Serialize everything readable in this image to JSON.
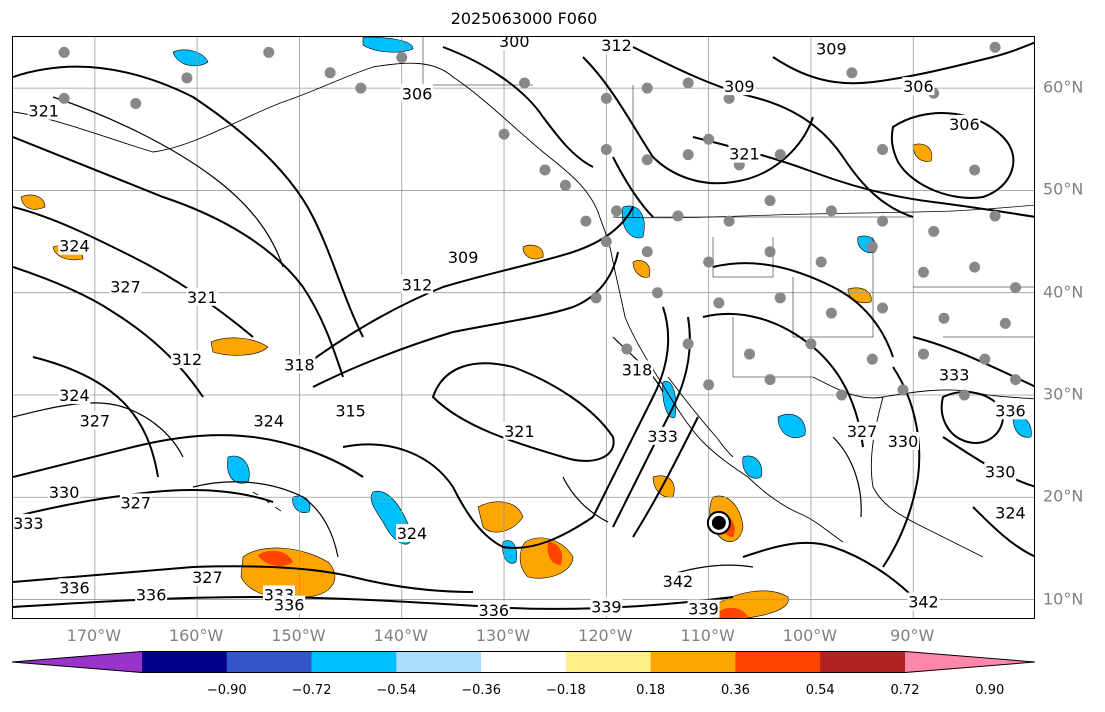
{
  "title": "2025063000 F060",
  "lat_labels": [
    {
      "label": "60°N",
      "lat": 60
    },
    {
      "label": "50°N",
      "lat": 50
    },
    {
      "label": "40°N",
      "lat": 40
    },
    {
      "label": "30°N",
      "lat": 30
    },
    {
      "label": "20°N",
      "lat": 20
    },
    {
      "label": "10°N",
      "lat": 10
    }
  ],
  "lon_labels": [
    {
      "label": "170°W",
      "lon": -170
    },
    {
      "label": "160°W",
      "lon": -160
    },
    {
      "label": "150°W",
      "lon": -150
    },
    {
      "label": "140°W",
      "lon": -140
    },
    {
      "label": "130°W",
      "lon": -130
    },
    {
      "label": "120°W",
      "lon": -120
    },
    {
      "label": "110°W",
      "lon": -110
    },
    {
      "label": "100°W",
      "lon": -100
    },
    {
      "label": "90°W",
      "lon": -90
    }
  ],
  "map_extent": {
    "lon_min": -178,
    "lon_max": -78,
    "lat_min": 8,
    "lat_max": 65
  },
  "contour_labels": [
    {
      "text": "300",
      "lon": -129,
      "lat": 64.6
    },
    {
      "text": "312",
      "lon": -119,
      "lat": 64.2
    },
    {
      "text": "309",
      "lon": -98,
      "lat": 63.9
    },
    {
      "text": "309",
      "lon": -107,
      "lat": 60.2
    },
    {
      "text": "306",
      "lon": -138.5,
      "lat": 59.5
    },
    {
      "text": "306",
      "lon": -89.5,
      "lat": 60.2
    },
    {
      "text": "306",
      "lon": -85,
      "lat": 56.5
    },
    {
      "text": "321",
      "lon": -175,
      "lat": 57.8
    },
    {
      "text": "321",
      "lon": -106.5,
      "lat": 53.6
    },
    {
      "text": "309",
      "lon": -134,
      "lat": 43.5
    },
    {
      "text": "312",
      "lon": -138.5,
      "lat": 40.8
    },
    {
      "text": "321",
      "lon": -159.5,
      "lat": 39.6
    },
    {
      "text": "324",
      "lon": -172,
      "lat": 44.6
    },
    {
      "text": "327",
      "lon": -167,
      "lat": 40.6
    },
    {
      "text": "312",
      "lon": -161,
      "lat": 33.5
    },
    {
      "text": "318",
      "lon": -150,
      "lat": 33
    },
    {
      "text": "315",
      "lon": -145,
      "lat": 28.5
    },
    {
      "text": "324",
      "lon": -172,
      "lat": 30
    },
    {
      "text": "327",
      "lon": -170,
      "lat": 27.5
    },
    {
      "text": "324",
      "lon": -153,
      "lat": 27.5
    },
    {
      "text": "318",
      "lon": -117,
      "lat": 32.5
    },
    {
      "text": "321",
      "lon": -128.5,
      "lat": 26.5
    },
    {
      "text": "333",
      "lon": -114.5,
      "lat": 26
    },
    {
      "text": "327",
      "lon": -95,
      "lat": 26.5
    },
    {
      "text": "330",
      "lon": -91,
      "lat": 25.5
    },
    {
      "text": "333",
      "lon": -86,
      "lat": 32
    },
    {
      "text": "336",
      "lon": -80.5,
      "lat": 28.5
    },
    {
      "text": "330",
      "lon": -81.5,
      "lat": 22.5
    },
    {
      "text": "324",
      "lon": -80.5,
      "lat": 18.5
    },
    {
      "text": "330",
      "lon": -173,
      "lat": 20.5
    },
    {
      "text": "333",
      "lon": -176.5,
      "lat": 17.5
    },
    {
      "text": "327",
      "lon": -166,
      "lat": 19.5
    },
    {
      "text": "324",
      "lon": -139,
      "lat": 16.5
    },
    {
      "text": "327",
      "lon": -159,
      "lat": 12.2
    },
    {
      "text": "336",
      "lon": -172,
      "lat": 11.2
    },
    {
      "text": "336",
      "lon": -164.5,
      "lat": 10.5
    },
    {
      "text": "333",
      "lon": -152,
      "lat": 10.5
    },
    {
      "text": "336",
      "lon": -151,
      "lat": 9.5
    },
    {
      "text": "336",
      "lon": -131,
      "lat": 9
    },
    {
      "text": "339",
      "lon": -120,
      "lat": 9.3
    },
    {
      "text": "342",
      "lon": -113,
      "lat": 11.8
    },
    {
      "text": "339",
      "lon": -110.5,
      "lat": 9.1
    },
    {
      "text": "342",
      "lon": -89,
      "lat": 9.8
    }
  ],
  "gray_dots": [
    {
      "lon": -173,
      "lat": 63.5
    },
    {
      "lon": -153,
      "lat": 63.5
    },
    {
      "lon": -140,
      "lat": 63
    },
    {
      "lon": -161,
      "lat": 61
    },
    {
      "lon": -173,
      "lat": 59
    },
    {
      "lon": -144,
      "lat": 60
    },
    {
      "lon": -128,
      "lat": 60.5
    },
    {
      "lon": -120,
      "lat": 59
    },
    {
      "lon": -116,
      "lat": 60
    },
    {
      "lon": -112,
      "lat": 60.5
    },
    {
      "lon": -108,
      "lat": 59
    },
    {
      "lon": -96,
      "lat": 61.5
    },
    {
      "lon": -88,
      "lat": 59.5
    },
    {
      "lon": -82,
      "lat": 64
    },
    {
      "lon": -130,
      "lat": 55.5
    },
    {
      "lon": -120,
      "lat": 54
    },
    {
      "lon": -116,
      "lat": 53
    },
    {
      "lon": -112,
      "lat": 53.5
    },
    {
      "lon": -107,
      "lat": 52.5
    },
    {
      "lon": -103,
      "lat": 53.5
    },
    {
      "lon": -93,
      "lat": 54
    },
    {
      "lon": -84,
      "lat": 52
    },
    {
      "lon": -166,
      "lat": 58.5
    },
    {
      "lon": -147,
      "lat": 61.5
    },
    {
      "lon": -124,
      "lat": 50.5
    },
    {
      "lon": -119,
      "lat": 48
    },
    {
      "lon": -113,
      "lat": 47.5
    },
    {
      "lon": -108,
      "lat": 47
    },
    {
      "lon": -104,
      "lat": 49
    },
    {
      "lon": -98,
      "lat": 48
    },
    {
      "lon": -93,
      "lat": 47
    },
    {
      "lon": -88,
      "lat": 46
    },
    {
      "lon": -82,
      "lat": 47.5
    },
    {
      "lon": -122,
      "lat": 47
    },
    {
      "lon": -116,
      "lat": 44
    },
    {
      "lon": -110,
      "lat": 43
    },
    {
      "lon": -104,
      "lat": 44
    },
    {
      "lon": -99,
      "lat": 43
    },
    {
      "lon": -94,
      "lat": 44.5
    },
    {
      "lon": -89,
      "lat": 42
    },
    {
      "lon": -84,
      "lat": 42.5
    },
    {
      "lon": -80,
      "lat": 40.5
    },
    {
      "lon": -121,
      "lat": 39.5
    },
    {
      "lon": -115,
      "lat": 40
    },
    {
      "lon": -109,
      "lat": 39
    },
    {
      "lon": -103,
      "lat": 39.5
    },
    {
      "lon": -98,
      "lat": 38
    },
    {
      "lon": -93,
      "lat": 38.5
    },
    {
      "lon": -87,
      "lat": 37.5
    },
    {
      "lon": -81,
      "lat": 37
    },
    {
      "lon": -118,
      "lat": 34.5
    },
    {
      "lon": -112,
      "lat": 35
    },
    {
      "lon": -106,
      "lat": 34
    },
    {
      "lon": -100,
      "lat": 35
    },
    {
      "lon": -94,
      "lat": 33.5
    },
    {
      "lon": -89,
      "lat": 34
    },
    {
      "lon": -83,
      "lat": 33.5
    },
    {
      "lon": -110,
      "lat": 31
    },
    {
      "lon": -104,
      "lat": 31.5
    },
    {
      "lon": -97,
      "lat": 30
    },
    {
      "lon": -91,
      "lat": 30.5
    },
    {
      "lon": -85,
      "lat": 30
    },
    {
      "lon": -80,
      "lat": 31.5
    },
    {
      "lon": -120,
      "lat": 45
    },
    {
      "lon": -126,
      "lat": 52
    },
    {
      "lon": -110,
      "lat": 55
    }
  ],
  "cyclone_marker": {
    "lon": -109,
    "lat": 17.5
  },
  "colorbar": {
    "colors": [
      "#9933cc",
      "#00008b",
      "#3355cc",
      "#00bfff",
      "#aaddff",
      "#ffffff",
      "#ffee88",
      "#ffa500",
      "#ff4400",
      "#b22222",
      "#ff88aa"
    ],
    "tick_labels": [
      "−0.90",
      "−0.72",
      "−0.54",
      "−0.36",
      "−0.18",
      "0.18",
      "0.36",
      "0.54",
      "0.72",
      "0.90"
    ],
    "levels": [
      -0.9,
      -0.72,
      -0.54,
      -0.36,
      -0.18,
      0.18,
      0.36,
      0.54,
      0.72,
      0.9
    ]
  }
}
